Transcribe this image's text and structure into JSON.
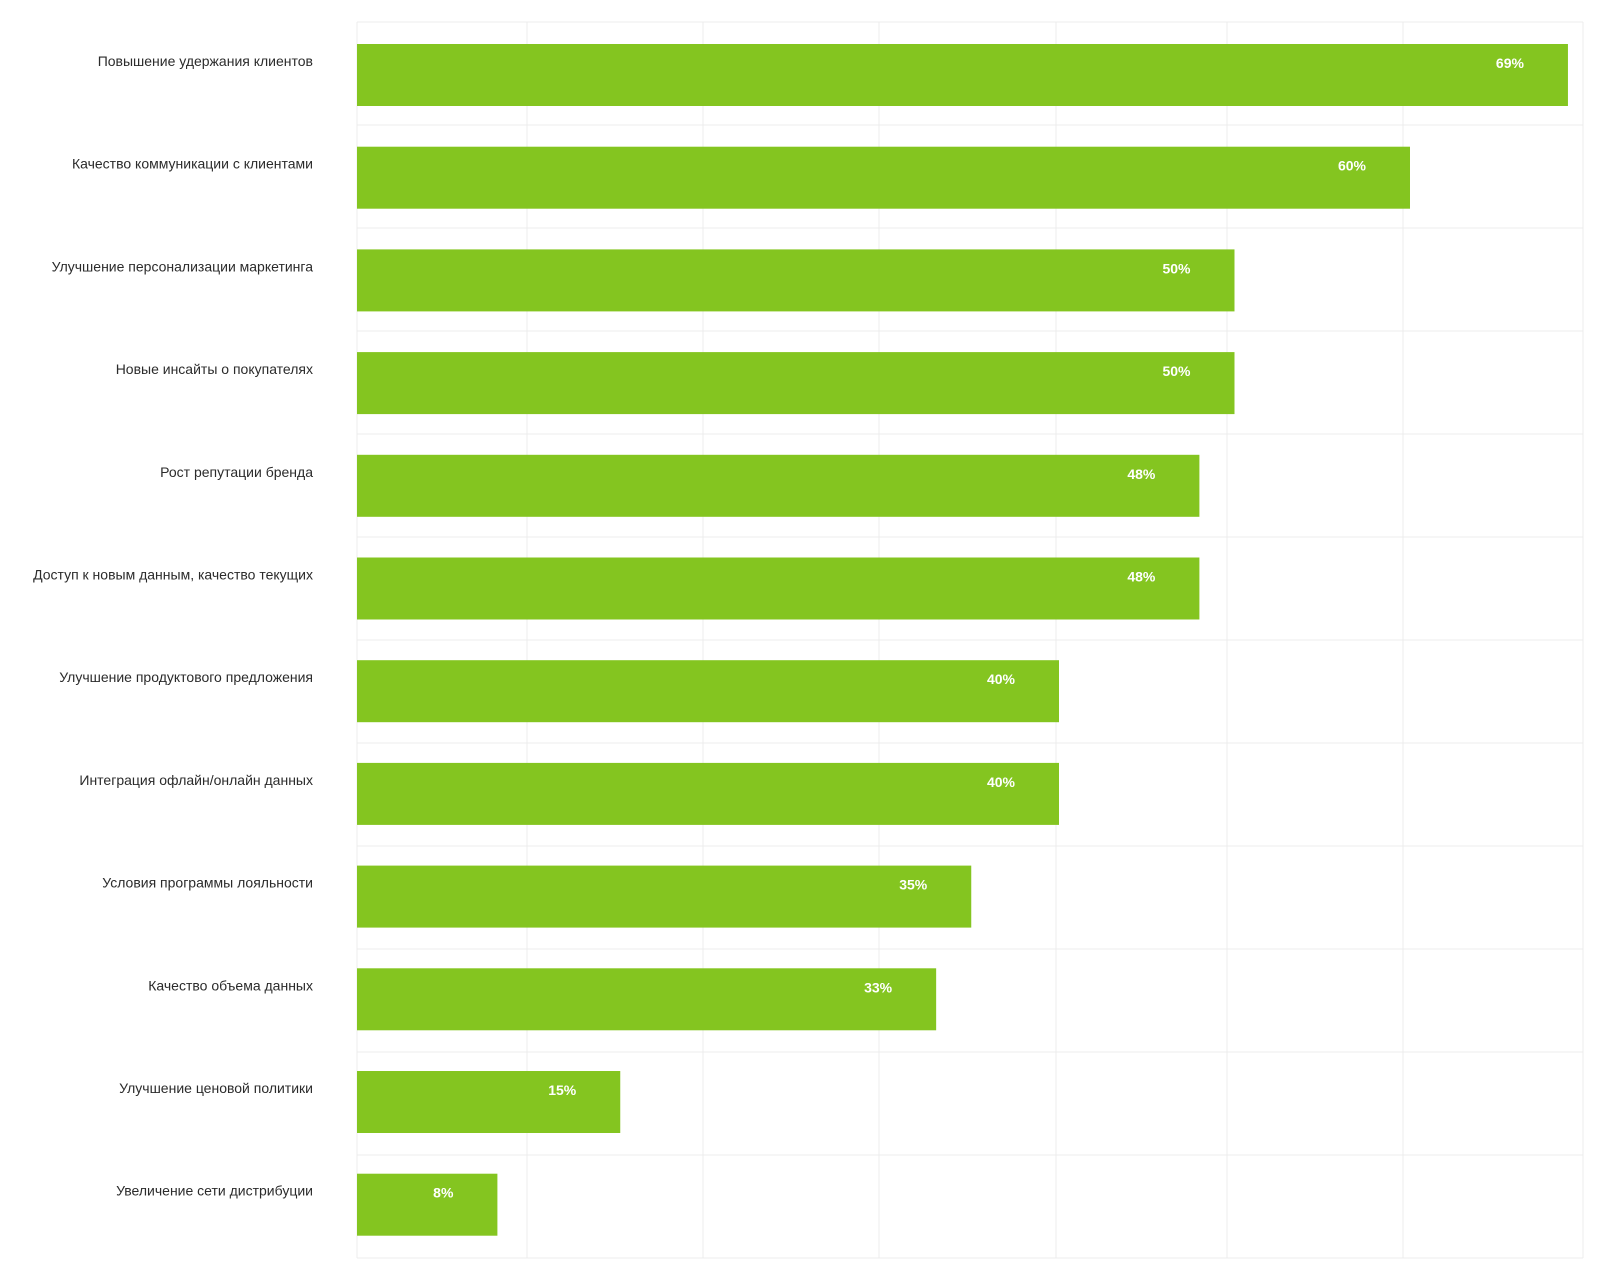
{
  "chart_data": {
    "type": "bar",
    "orientation": "horizontal",
    "categories": [
      "Повышение удержания клиентов",
      "Качество коммуникации с клиентами",
      "Улучшение персонализации маркетинга",
      "Новые инсайты о покупателях",
      "Рост репутации бренда",
      "Доступ к новым данным, качество текущих",
      "Улучшение продуктового предложения",
      "Интеграция офлайн/онлайн данных",
      "Условия программы лояльности",
      "Качество объема данных",
      "Улучшение ценовой политики",
      "Увеличение сети дистрибуции"
    ],
    "values": [
      69,
      60,
      50,
      50,
      48,
      48,
      40,
      40,
      35,
      33,
      15,
      8
    ],
    "value_labels": [
      "69%",
      "60%",
      "50%",
      "50%",
      "48%",
      "48%",
      "40%",
      "40%",
      "35%",
      "33%",
      "15%",
      "8%"
    ],
    "value_suffix": "%",
    "xlim": [
      0,
      70
    ],
    "grid": true,
    "legend": "none",
    "bar_color": "#84c520",
    "label_color": "#ffffff",
    "grid_color": "#ececec",
    "text_color": "#2b2b2b"
  }
}
